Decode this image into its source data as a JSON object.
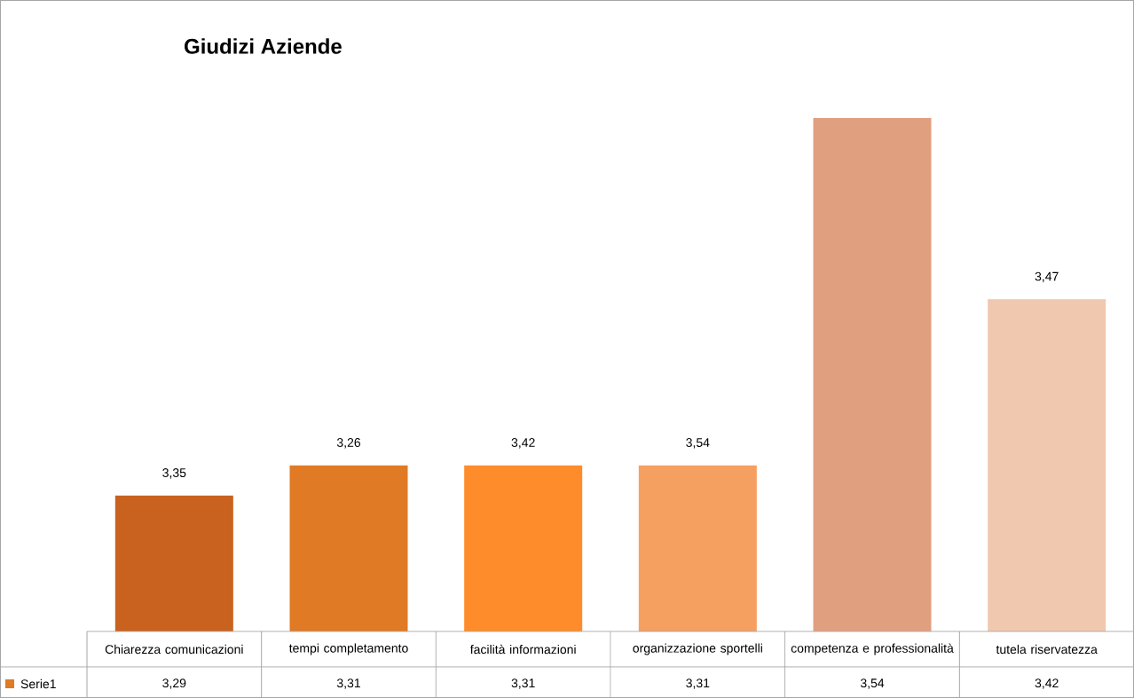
{
  "chart_data": {
    "type": "bar",
    "title": "Giudizi Aziende",
    "categories": [
      "Chiarezza comunicazioni",
      "tempi completamento",
      "facilità informazioni",
      "organizzazione sportelli",
      "competenza e professionalità",
      "tutela riservatezza"
    ],
    "series": [
      {
        "name": "Serie1",
        "color": "#e07a24",
        "values": [
          3.29,
          3.31,
          3.31,
          3.31,
          3.54,
          3.42
        ],
        "colors": [
          "#c8621e",
          "#e07a24",
          "#ff8c2a",
          "#f5a060",
          "#e0a080",
          "#f0c8b0"
        ],
        "value_labels": [
          "3,29",
          "3,31",
          "3,31",
          "3,31",
          "3,54",
          "3,42"
        ]
      }
    ],
    "ylim": [
      3.2,
      3.54
    ],
    "tick_labels": "x",
    "legend": "bottom left",
    "annotations": [
      "3,35",
      "3,26",
      "3,42",
      "3,54",
      "3,47"
    ]
  }
}
